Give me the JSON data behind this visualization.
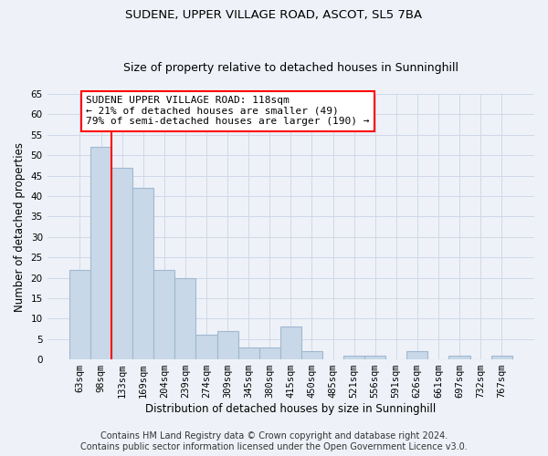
{
  "title": "SUDENE, UPPER VILLAGE ROAD, ASCOT, SL5 7BA",
  "subtitle": "Size of property relative to detached houses in Sunninghill",
  "xlabel": "Distribution of detached houses by size in Sunninghill",
  "ylabel": "Number of detached properties",
  "categories": [
    "63sqm",
    "98sqm",
    "133sqm",
    "169sqm",
    "204sqm",
    "239sqm",
    "274sqm",
    "309sqm",
    "345sqm",
    "380sqm",
    "415sqm",
    "450sqm",
    "485sqm",
    "521sqm",
    "556sqm",
    "591sqm",
    "626sqm",
    "661sqm",
    "697sqm",
    "732sqm",
    "767sqm"
  ],
  "values": [
    22,
    52,
    47,
    42,
    22,
    20,
    6,
    7,
    3,
    3,
    8,
    2,
    0,
    1,
    1,
    0,
    2,
    0,
    1,
    0,
    1
  ],
  "bar_color": "#c8d8e8",
  "bar_edge_color": "#a0b8d0",
  "vline_position": 1.5,
  "annotation_text": "SUDENE UPPER VILLAGE ROAD: 118sqm\n← 21% of detached houses are smaller (49)\n79% of semi-detached houses are larger (190) →",
  "annotation_box_color": "white",
  "annotation_box_edge": "red",
  "vline_color": "red",
  "ylim": [
    0,
    65
  ],
  "yticks": [
    0,
    5,
    10,
    15,
    20,
    25,
    30,
    35,
    40,
    45,
    50,
    55,
    60,
    65
  ],
  "grid_color": "#d0d8e8",
  "background_color": "#eef2f8",
  "footer_line1": "Contains HM Land Registry data © Crown copyright and database right 2024.",
  "footer_line2": "Contains public sector information licensed under the Open Government Licence v3.0.",
  "title_fontsize": 9.5,
  "subtitle_fontsize": 9,
  "axis_label_fontsize": 8.5,
  "tick_fontsize": 7.5,
  "annotation_fontsize": 8,
  "footer_fontsize": 7
}
